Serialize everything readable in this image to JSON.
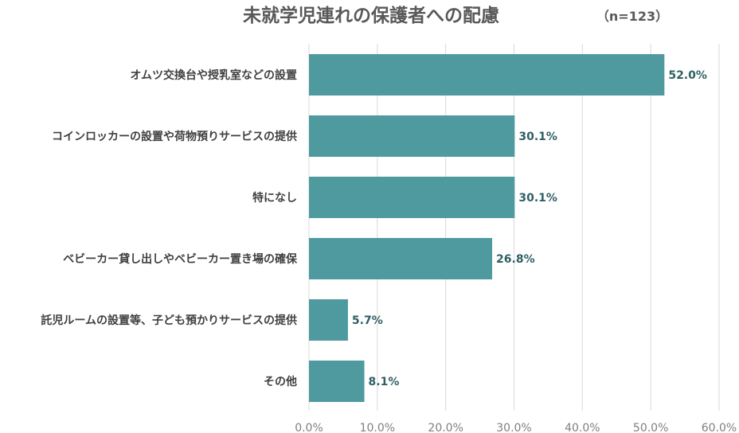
{
  "chart_data": {
    "type": "bar",
    "orientation": "horizontal",
    "title": "未就学児連れの保護者への配慮",
    "note": "（n=123）",
    "categories": [
      "オムツ交換台や授乳室などの設置",
      "コインロッカーの設置や荷物預りサービスの提供",
      "特になし",
      "ベビーカー貸し出しやベビーカー置き場の確保",
      "託児ルームの設置等、子ども預かりサービスの提供",
      "その他"
    ],
    "values": [
      52.0,
      30.1,
      30.1,
      26.8,
      5.7,
      8.1
    ],
    "value_labels": [
      "52.0%",
      "30.1%",
      "30.1%",
      "26.8%",
      "5.7%",
      "8.1%"
    ],
    "xlim": [
      0,
      60
    ],
    "xticks": [
      0,
      10,
      20,
      30,
      40,
      50,
      60
    ],
    "xtick_labels": [
      "0.0%",
      "10.0%",
      "20.0%",
      "30.0%",
      "40.0%",
      "50.0%",
      "60.0%"
    ],
    "grid": true,
    "legend": "none",
    "bar_color": "#4e9a9e"
  }
}
